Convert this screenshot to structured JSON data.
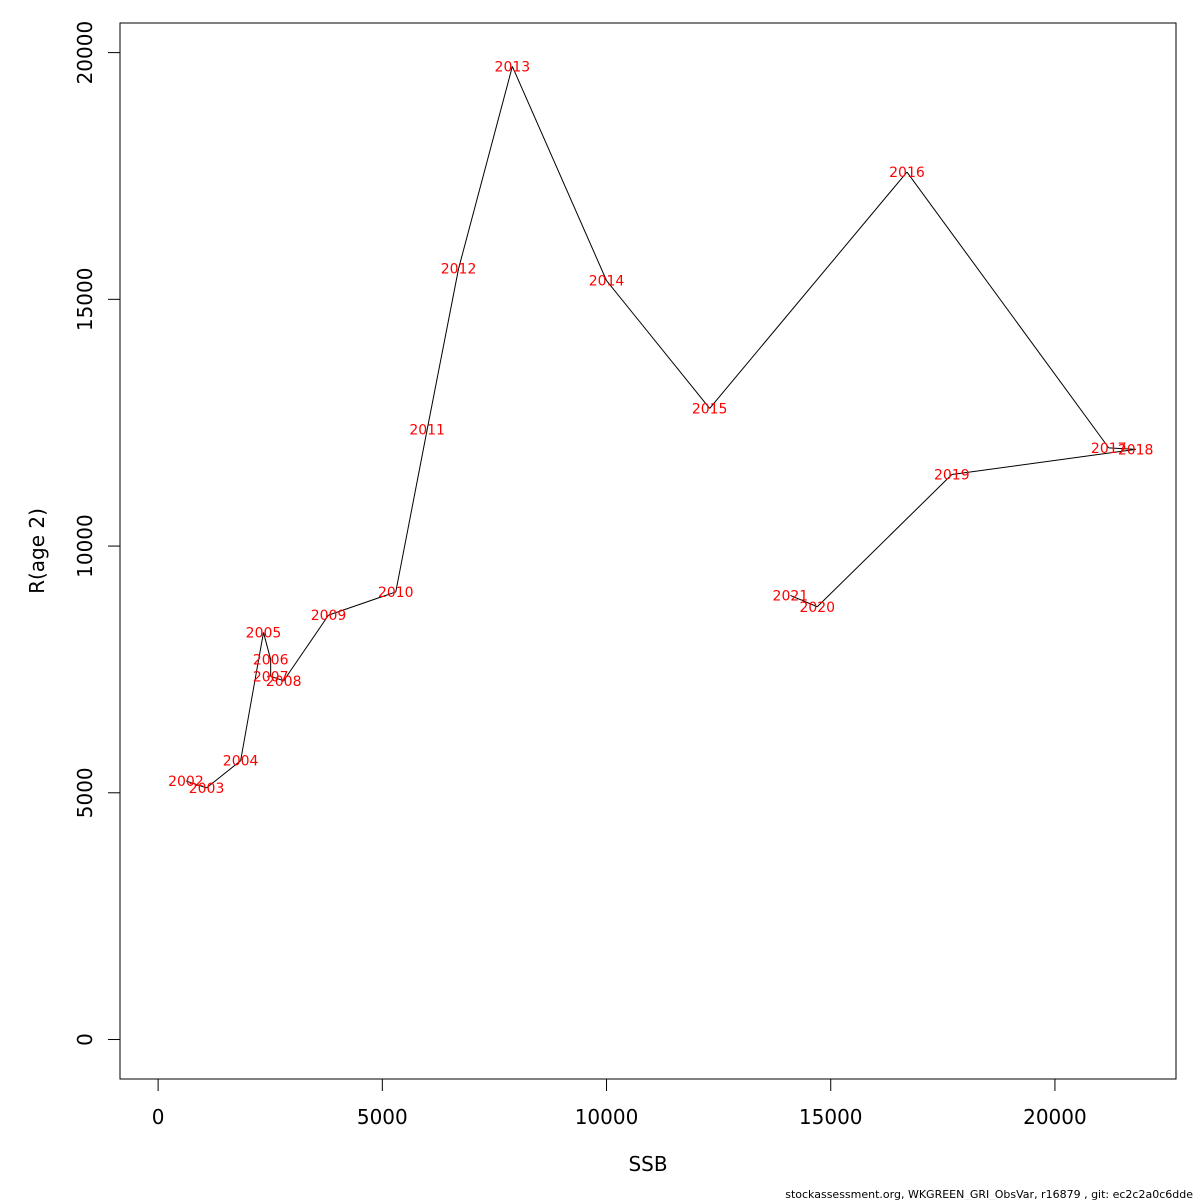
{
  "chart_data": {
    "type": "line",
    "xlabel": "SSB",
    "ylabel": "R(age 2)",
    "xlim": [
      -850,
      22700
    ],
    "ylim": [
      -800,
      20600
    ],
    "x_ticks": [
      0,
      5000,
      10000,
      15000,
      20000
    ],
    "y_ticks": [
      0,
      5000,
      10000,
      15000,
      20000
    ],
    "x_tick_labels": [
      "0",
      "5000",
      "10000",
      "15000",
      "20000"
    ],
    "y_tick_labels": [
      "0",
      "5000",
      "10000",
      "15000",
      "20000"
    ],
    "grid": false,
    "line_color": "#000000",
    "label_color": "#ff0000",
    "points": [
      {
        "label": "2002",
        "x": 620,
        "y": 5240
      },
      {
        "label": "2003",
        "x": 1080,
        "y": 5100
      },
      {
        "label": "2004",
        "x": 1840,
        "y": 5650
      },
      {
        "label": "2005",
        "x": 2350,
        "y": 8250
      },
      {
        "label": "2006",
        "x": 2510,
        "y": 7700
      },
      {
        "label": "2007",
        "x": 2510,
        "y": 7360
      },
      {
        "label": "2008",
        "x": 2800,
        "y": 7270
      },
      {
        "label": "2009",
        "x": 3800,
        "y": 8600
      },
      {
        "label": "2010",
        "x": 5300,
        "y": 9070
      },
      {
        "label": "2011",
        "x": 6000,
        "y": 12360
      },
      {
        "label": "2012",
        "x": 6700,
        "y": 15620
      },
      {
        "label": "2013",
        "x": 7900,
        "y": 19720
      },
      {
        "label": "2014",
        "x": 10000,
        "y": 15380
      },
      {
        "label": "2015",
        "x": 12300,
        "y": 12790
      },
      {
        "label": "2016",
        "x": 16700,
        "y": 17580
      },
      {
        "label": "2017",
        "x": 21200,
        "y": 11990
      },
      {
        "label": "2018",
        "x": 21800,
        "y": 11960
      },
      {
        "label": "2019",
        "x": 17700,
        "y": 11450
      },
      {
        "label": "2020",
        "x": 14700,
        "y": 8770
      },
      {
        "label": "2021",
        "x": 14100,
        "y": 9000
      }
    ]
  },
  "footer": "stockassessment.org, WKGREEN_GRI_ObsVar, r16879 , git: ec2c2a0c6dde"
}
